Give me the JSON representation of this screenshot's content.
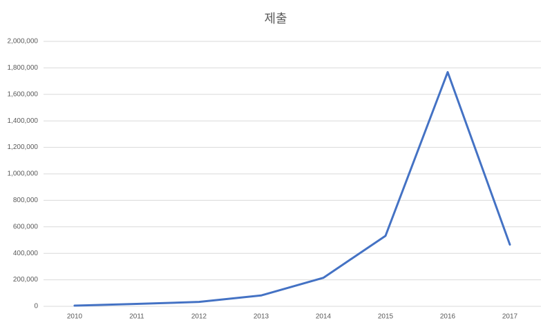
{
  "chart_data": {
    "type": "line",
    "title": "제출",
    "categories": [
      "2010",
      "2011",
      "2012",
      "2013",
      "2014",
      "2015",
      "2016",
      "2017"
    ],
    "series": [
      {
        "name": "제출",
        "color": "#4472c4",
        "values": [
          5000,
          18000,
          33000,
          82000,
          215000,
          532000,
          1768000,
          466000
        ]
      }
    ],
    "ylim": [
      0,
      2000000
    ],
    "yticks": [
      0,
      {
        "value": 200000,
        "label": "200,000"
      },
      {
        "value": 400000,
        "label": "400,000"
      },
      {
        "value": 600000,
        "label": "600,000"
      },
      {
        "value": 800000,
        "label": "800,000"
      },
      {
        "value": 1000000,
        "label": "1,000,000"
      },
      {
        "value": 1200000,
        "label": "1,200,000"
      },
      {
        "value": 1400000,
        "label": "1,400,000"
      },
      {
        "value": 1600000,
        "label": "1,600,000"
      },
      {
        "value": 1800000,
        "label": "1,800,000"
      },
      {
        "value": 2000000,
        "label": "2,000,000"
      }
    ],
    "grid": true
  }
}
